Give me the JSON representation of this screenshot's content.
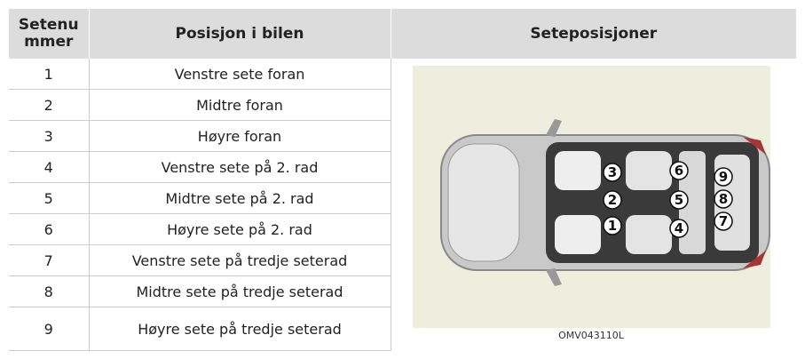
{
  "table": {
    "header": {
      "col1": [
        "Setenu",
        "mmer"
      ],
      "col2": "Posisjon i bilen",
      "col3": "Seteposisjoner"
    },
    "rows": [
      [
        "1",
        "Venstre sete foran"
      ],
      [
        "2",
        "Midtre foran"
      ],
      [
        "3",
        "Høyre foran"
      ],
      [
        "4",
        "Venstre sete på 2. rad"
      ],
      [
        "5",
        "Midtre sete på 2. rad"
      ],
      [
        "6",
        "Høyre sete på 2. rad"
      ],
      [
        "7",
        "Venstre sete på tredje seterad"
      ],
      [
        "8",
        "Midtre sete på tredje seterad"
      ],
      [
        "9",
        "Høyre sete på tredje seterad"
      ]
    ]
  },
  "figure": {
    "seat_labels": [
      "1",
      "2",
      "3",
      "4",
      "5",
      "6",
      "7",
      "8",
      "9"
    ],
    "caption": "OMV043110L"
  }
}
